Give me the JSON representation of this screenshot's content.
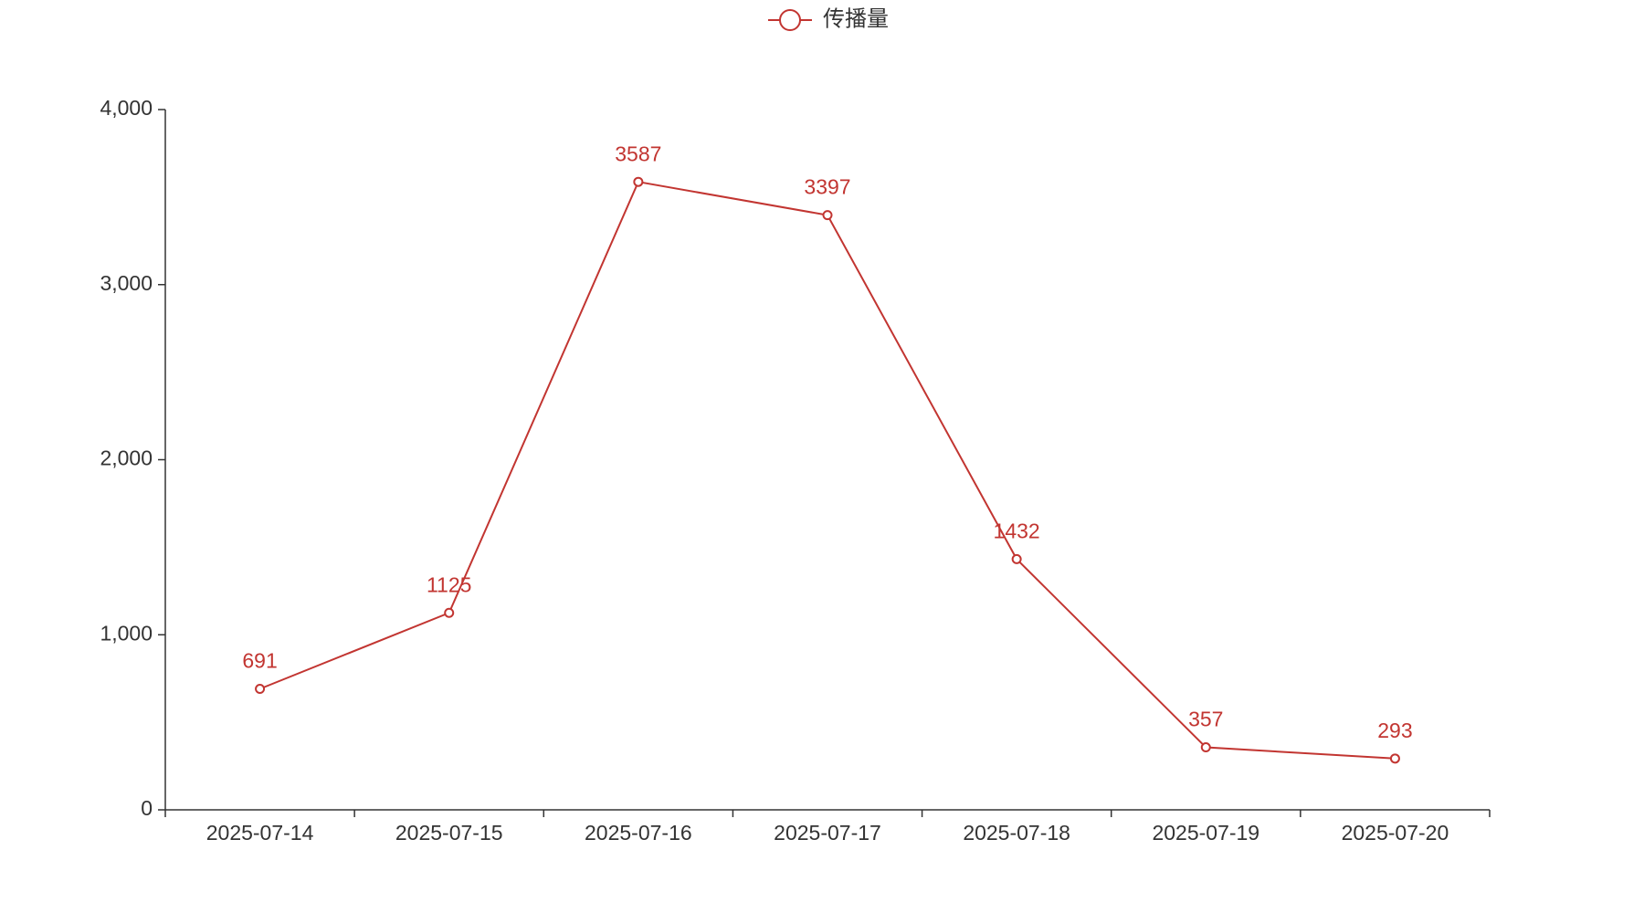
{
  "chart_data": {
    "type": "line",
    "categories": [
      "2025-07-14",
      "2025-07-15",
      "2025-07-16",
      "2025-07-17",
      "2025-07-18",
      "2025-07-19",
      "2025-07-20"
    ],
    "series": [
      {
        "name": "传播量",
        "color": "#c23531",
        "values": [
          691,
          1125,
          3587,
          3397,
          1432,
          357,
          293
        ]
      }
    ],
    "ylim": [
      0,
      4000
    ],
    "yticks": [
      0,
      {
        "value": 1000,
        "label": "1,000"
      },
      {
        "value": 2000,
        "label": "2,000"
      },
      {
        "value": 3000,
        "label": "3,000"
      },
      {
        "value": 4000,
        "label": "4,000"
      }
    ],
    "legend": "top"
  }
}
